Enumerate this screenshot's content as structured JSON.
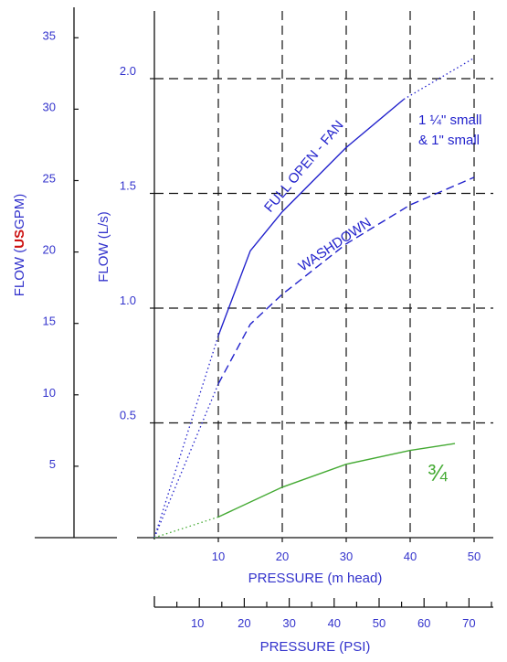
{
  "chart_data": {
    "type": "line",
    "title": "",
    "axes": {
      "x_primary": {
        "label": "PRESSURE (m head)",
        "range": [
          0,
          50
        ],
        "ticks": [
          "10",
          "20",
          "30",
          "40",
          "50"
        ]
      },
      "x_secondary": {
        "label": "PRESSURE (PSI)",
        "ticks": [
          "10",
          "20",
          "30",
          "40",
          "50",
          "60",
          "70"
        ]
      },
      "y_primary": {
        "label": "FLOW (L/s)",
        "range": [
          0,
          2.4
        ],
        "ticks": [
          "0.5",
          "1.0",
          "1.5",
          "2.0"
        ]
      },
      "y_secondary": {
        "label_before": "FLOW (",
        "label_us": "US",
        "label_after": "GPM)",
        "ticks": [
          "5",
          "10",
          "15",
          "20",
          "25",
          "30",
          "35"
        ]
      }
    },
    "grid": "dashed",
    "series": [
      {
        "name": "FULL OPEN - FAN",
        "color": "#2222cc",
        "style": "solid",
        "points": [
          [
            10,
            0.88
          ],
          [
            15,
            1.25
          ],
          [
            20,
            1.42
          ],
          [
            30,
            1.7
          ],
          [
            39,
            1.91
          ]
        ],
        "extrapolated": [
          [
            0,
            0
          ],
          [
            10,
            0.88
          ]
        ],
        "extrapolated_end": [
          [
            39,
            1.91
          ],
          [
            50,
            2.09
          ]
        ]
      },
      {
        "name": "WASHDOWN",
        "color": "#2222cc",
        "style": "dashed",
        "points": [
          [
            10,
            0.67
          ],
          [
            15,
            0.93
          ],
          [
            20,
            1.06
          ],
          [
            30,
            1.28
          ],
          [
            40,
            1.45
          ],
          [
            50,
            1.57
          ]
        ],
        "extrapolated": [
          [
            0,
            0
          ],
          [
            10,
            0.67
          ]
        ]
      },
      {
        "name": "3/4",
        "color": "#44aa33",
        "style": "solid",
        "points": [
          [
            10,
            0.09
          ],
          [
            20,
            0.22
          ],
          [
            30,
            0.32
          ],
          [
            40,
            0.38
          ],
          [
            47,
            0.41
          ]
        ],
        "extrapolated": [
          [
            0,
            0
          ],
          [
            10,
            0.09
          ]
        ]
      }
    ],
    "annotations": {
      "full_open": "FULL OPEN - FAN",
      "washdown": "WASHDOWN",
      "size_line1": "1 ¼\" small",
      "size_line2": "& 1\" small",
      "three_quarter": "¾"
    }
  }
}
